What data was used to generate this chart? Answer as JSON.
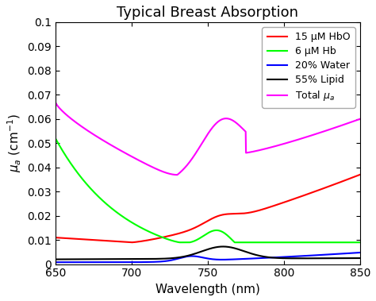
{
  "title": "Typical Breast Absorption",
  "xlabel": "Wavelength (nm)",
  "xlim": [
    650,
    850
  ],
  "ylim": [
    0,
    0.1
  ],
  "yticks": [
    0,
    0.01,
    0.02,
    0.03,
    0.04,
    0.05,
    0.06,
    0.07,
    0.08,
    0.09,
    0.1
  ],
  "xticks": [
    650,
    700,
    750,
    800,
    850
  ],
  "legend_labels": [
    "15 μM HbO",
    "6 μM Hb",
    "20% Water",
    "55% Lipid",
    "Total μ_a"
  ],
  "line_colors": [
    "red",
    "lime",
    "blue",
    "black",
    "magenta"
  ],
  "background_color": "#ffffff",
  "title_fontsize": 13,
  "label_fontsize": 11,
  "tick_fontsize": 10
}
